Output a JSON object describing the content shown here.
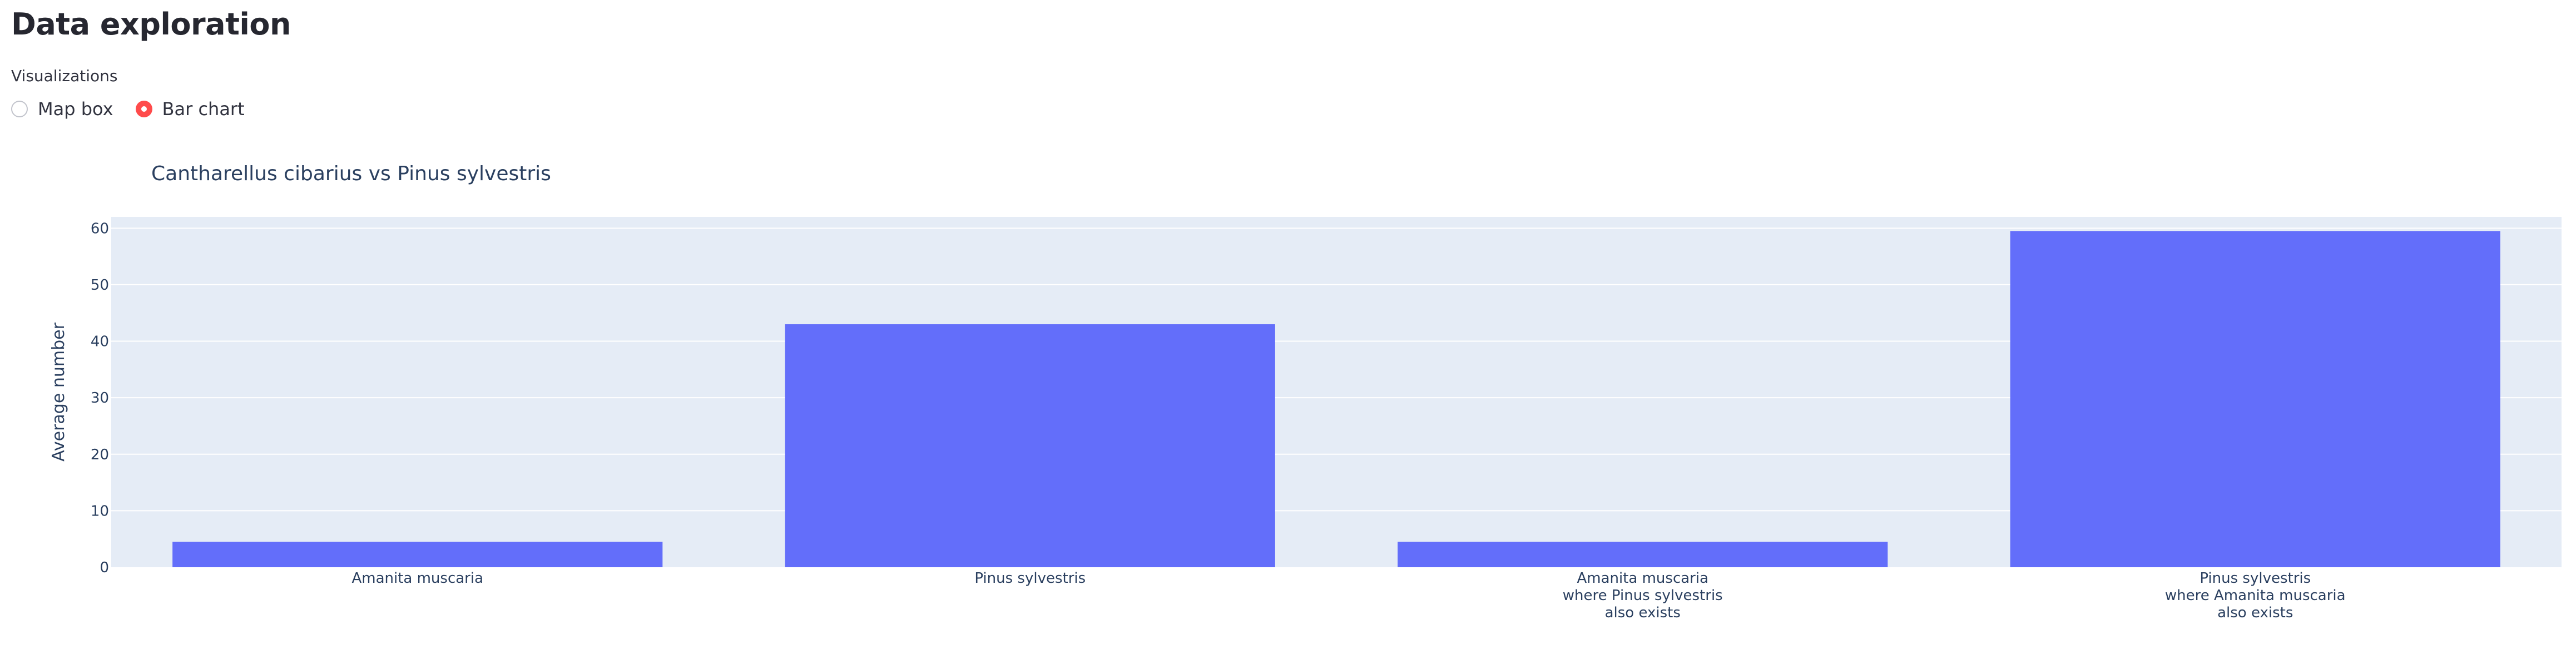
{
  "page": {
    "title": "Data exploration"
  },
  "visualizations": {
    "label": "Visualizations",
    "options": [
      {
        "label": "Map box",
        "selected": false
      },
      {
        "label": "Bar chart",
        "selected": true
      }
    ]
  },
  "colors": {
    "bar": "#636efa",
    "plot_bg": "#e5ecf6",
    "radio_accent": "#ff4b4b"
  },
  "chart_data": {
    "type": "bar",
    "title": "Cantharellus cibarius vs Pinus sylvestris",
    "ylabel": "Average number",
    "xlabel": "",
    "ylim": [
      0,
      62
    ],
    "yticks": [
      0,
      10,
      20,
      30,
      40,
      50,
      60
    ],
    "grid": true,
    "categories": [
      [
        "Amanita muscaria"
      ],
      [
        "Pinus sylvestris"
      ],
      [
        "Amanita muscaria",
        "where Pinus sylvestris",
        "also exists"
      ],
      [
        "Pinus sylvestris",
        "where Amanita muscaria",
        "also exists"
      ]
    ],
    "values": [
      4.5,
      43,
      4.5,
      59.5
    ]
  }
}
